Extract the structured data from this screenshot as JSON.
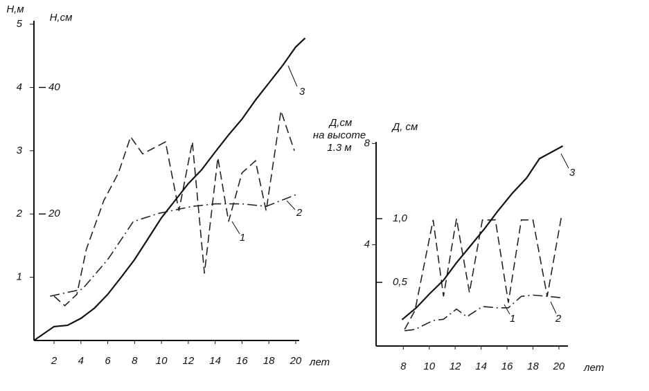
{
  "chart_data": [
    {
      "type": "line",
      "ylabel": "Н,м",
      "y2label": "Н,см",
      "xlabel": "лет",
      "xlim": [
        0.5,
        21.5
      ],
      "xticks": [
        2,
        4,
        6,
        8,
        10,
        12,
        14,
        16,
        18,
        20
      ],
      "ylim": [
        0,
        5
      ],
      "yticks": [
        1,
        2,
        3,
        4,
        5
      ],
      "y2lim": [
        0,
        50
      ],
      "y2ticks": [
        20,
        40
      ],
      "series": [
        {
          "name": "1",
          "color": "#222",
          "line_style": "dashed",
          "axis": "y2",
          "x": [
            2,
            2.8,
            3.7,
            4.4,
            5.7,
            6.8,
            7.7,
            8.6,
            10.3,
            11.3,
            12.3,
            13.2,
            14.2,
            15,
            16,
            17,
            17.8,
            18.9,
            19.9
          ],
          "values": [
            7.0,
            5.5,
            7.3,
            14.4,
            22.1,
            26.5,
            32.2,
            29.5,
            31.4,
            20.5,
            31.4,
            10.6,
            28.9,
            18.8,
            26.5,
            28.4,
            20.5,
            36.3,
            30.0
          ]
        },
        {
          "name": "2",
          "color": "#222",
          "line_style": "dashdot",
          "axis": "y2",
          "x": [
            1.7,
            4.1,
            6,
            7.9,
            9.8,
            11.4,
            12.3,
            14,
            16,
            17.8,
            20.2
          ],
          "values": [
            7.0,
            8.1,
            12.8,
            18.8,
            20.1,
            20.8,
            21.2,
            21.6,
            21.6,
            21.2,
            23.2
          ]
        },
        {
          "name": "3",
          "color": "#111",
          "line_style": "solid",
          "axis": "y",
          "x": [
            0.5,
            2,
            3,
            4,
            5,
            6,
            7,
            8,
            9,
            10,
            11,
            12,
            13,
            14,
            15,
            16,
            17,
            18,
            19,
            20,
            20.7
          ],
          "values": [
            0,
            0.22,
            0.24,
            0.35,
            0.51,
            0.73,
            1.0,
            1.28,
            1.61,
            1.94,
            2.21,
            2.48,
            2.7,
            2.98,
            3.25,
            3.5,
            3.8,
            4.07,
            4.34,
            4.64,
            4.78
          ]
        }
      ]
    },
    {
      "type": "line",
      "ylabel": [
        "Д,см",
        "на высоте",
        "1.3 м"
      ],
      "y2label": "Д, см",
      "xlabel": "лет",
      "xlim": [
        5.9,
        21.5
      ],
      "xticks": [
        8,
        10,
        12,
        14,
        16,
        18,
        20
      ],
      "ylim": [
        0,
        8.2
      ],
      "yticks": [
        4,
        8
      ],
      "y2lim": [
        0,
        1.63
      ],
      "y2ticks": [
        {
          "value": 0.5,
          "label": "0,5"
        },
        {
          "value": 1.0,
          "label": "1,0"
        }
      ],
      "series": [
        {
          "name": "1",
          "color": "#222",
          "line_style": "dashed",
          "axis": "y2",
          "x": [
            8.1,
            8.9,
            10.3,
            11.1,
            12.1,
            13.1,
            14.1,
            15.1,
            16.1,
            17.1,
            18,
            19.1,
            20.2
          ],
          "values": [
            0.13,
            0.28,
            0.99,
            0.39,
            1.0,
            0.42,
            0.99,
            0.99,
            0.34,
            0.99,
            0.99,
            0.39,
            1.02
          ]
        },
        {
          "name": "2",
          "color": "#222",
          "line_style": "dashdot",
          "axis": "y2",
          "x": [
            8.1,
            8.9,
            10.3,
            11.1,
            12.1,
            12.9,
            14.1,
            15.3,
            16.1,
            17.1,
            18,
            19.1,
            20.1
          ],
          "values": [
            0.12,
            0.13,
            0.2,
            0.21,
            0.29,
            0.23,
            0.31,
            0.3,
            0.3,
            0.39,
            0.4,
            0.39,
            0.38
          ]
        },
        {
          "name": "3",
          "color": "#111",
          "line_style": "solid",
          "axis": "y",
          "x": [
            7.9,
            9,
            10,
            11.1,
            12.1,
            13.2,
            14.3,
            15.3,
            16.4,
            17.5,
            18.5,
            20.3
          ],
          "values": [
            1.04,
            1.51,
            2.05,
            2.6,
            3.29,
            3.97,
            4.66,
            5.34,
            6.03,
            6.63,
            7.4,
            7.9
          ]
        }
      ]
    }
  ]
}
